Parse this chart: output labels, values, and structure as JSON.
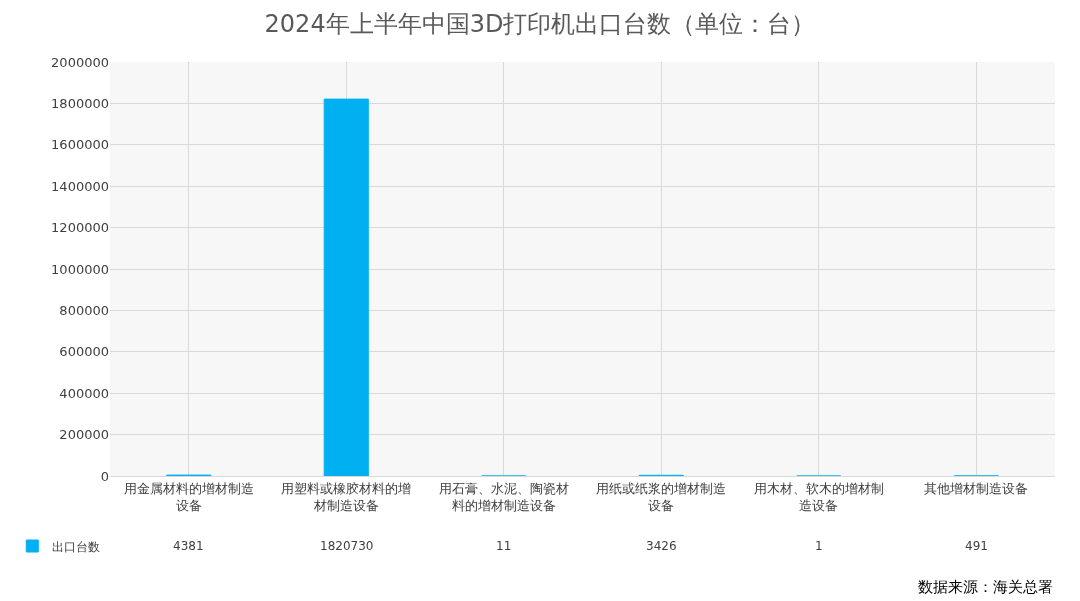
{
  "chart_data": {
    "type": "bar",
    "title": "2024年上半年中国3D打印机出口台数（单位：台）",
    "categories": [
      "用金属材料的增材制造设备",
      "用塑料或橡胶材料的增材制造设备",
      "用石膏、水泥、陶瓷材料的增材制造设备",
      "用纸或纸浆的增材制造设备",
      "用木材、软木的增材制造设备",
      "其他增材制造设备"
    ],
    "series": [
      {
        "name": "出口台数",
        "color": "#00b0f0",
        "values": [
          4381,
          1820730,
          11,
          3426,
          1,
          491
        ]
      }
    ],
    "ylim": [
      0,
      2000000
    ],
    "yticks": [
      0,
      200000,
      400000,
      600000,
      800000,
      1000000,
      1200000,
      1400000,
      1600000,
      1800000,
      2000000
    ],
    "grid": true,
    "legend": "bottom left",
    "data_labels": true,
    "annotations": [
      "数据来源：海关总署"
    ]
  }
}
